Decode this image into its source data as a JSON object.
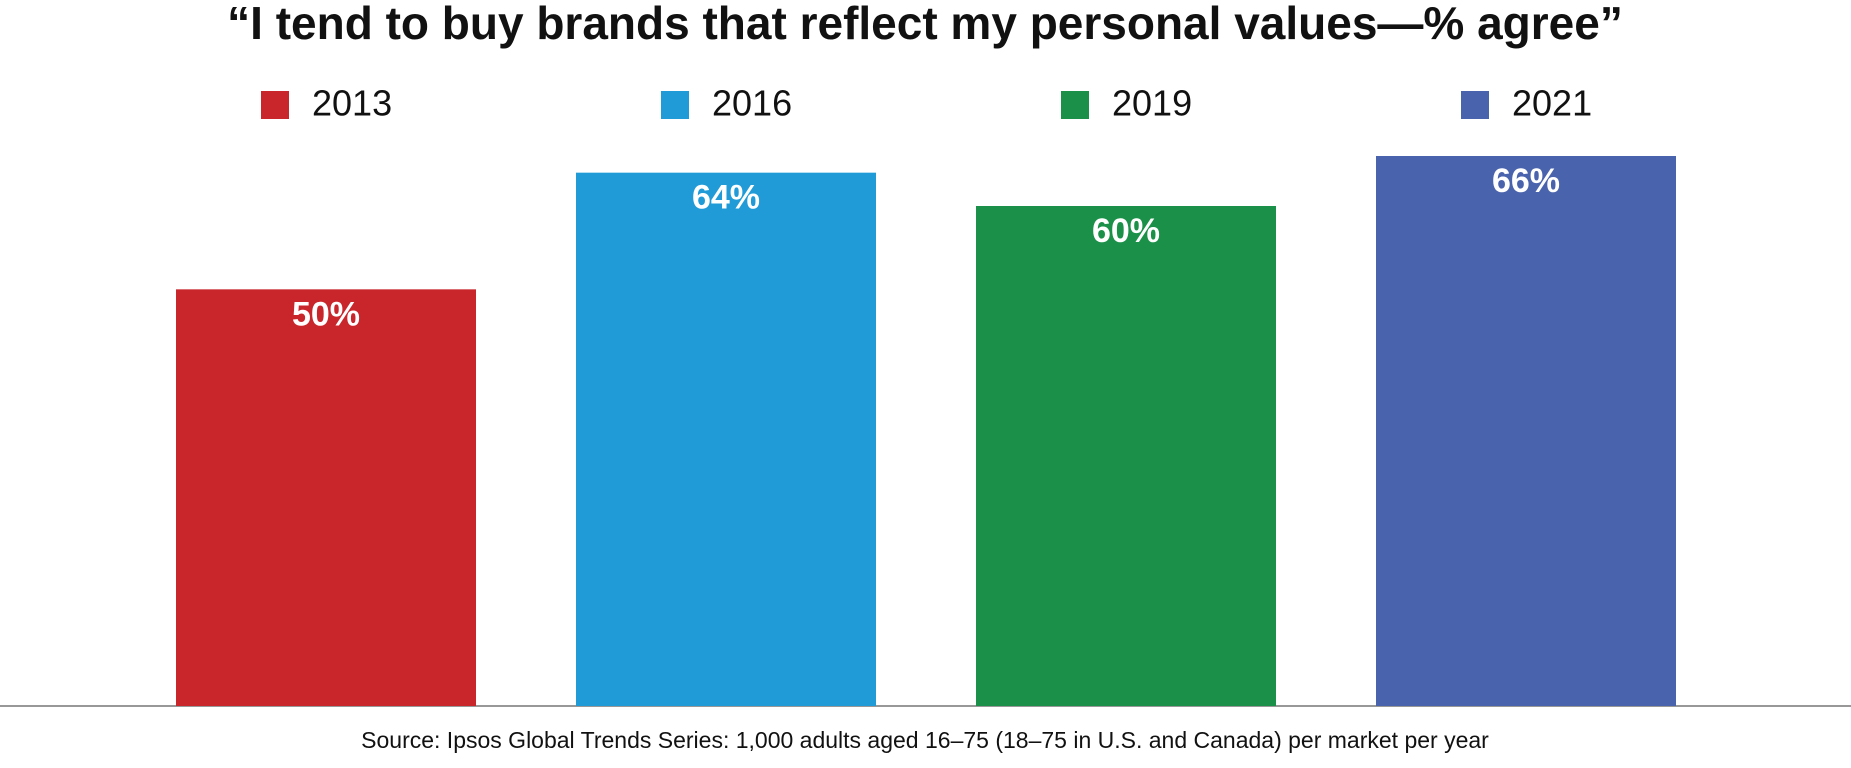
{
  "chart_data": {
    "type": "bar",
    "title": "“I tend to buy brands that reflect my personal values—% agree”",
    "categories": [
      "2013",
      "2016",
      "2019",
      "2021"
    ],
    "values": [
      50,
      64,
      60,
      66
    ],
    "value_labels": [
      "50%",
      "64%",
      "60%",
      "66%"
    ],
    "colors": [
      "#c8262b",
      "#209bd7",
      "#1a9048",
      "#4a63ad"
    ],
    "ylim": [
      0,
      66
    ],
    "legend": "top",
    "source": "Source: Ipsos Global Trends Series: 1,000 adults aged 16–75 (18–75 in U.S. and Canada) per market per year"
  }
}
